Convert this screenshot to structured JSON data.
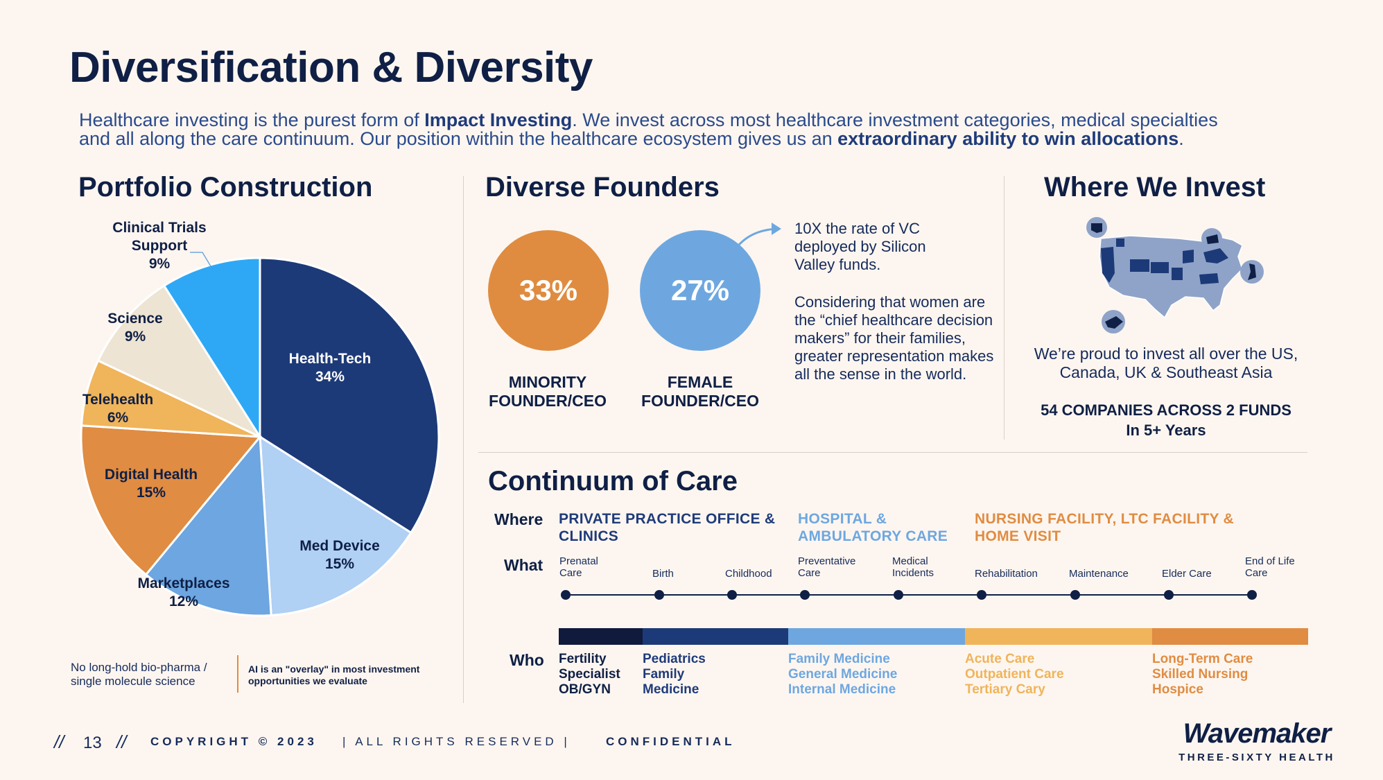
{
  "title": "Diversification & Diversity",
  "intro": {
    "line1_pre": "Healthcare investing is the purest form of ",
    "line1_bold": "Impact Investing",
    "line1_post": ". We invest across most healthcare investment categories, medical specialties",
    "line2_pre": "and all along the care continuum. Our position within the healthcare ecosystem gives us an ",
    "line2_bold": "extraordinary ability to win allocations",
    "line2_post": "."
  },
  "portfolio": {
    "heading": "Portfolio Construction",
    "slices": [
      {
        "name": "Health-Tech",
        "pct": "34%",
        "value": 34,
        "color": "#1d3a78"
      },
      {
        "name": "Med Device",
        "pct": "15%",
        "value": 15,
        "color": "#b0d0f4"
      },
      {
        "name": "Marketplaces",
        "pct": "12%",
        "value": 12,
        "color": "#6da6e0"
      },
      {
        "name": "Digital Health",
        "pct": "15%",
        "value": 15,
        "color": "#e08c42"
      },
      {
        "name": "Telehealth",
        "pct": "6%",
        "value": 6,
        "color": "#f0b45a"
      },
      {
        "name": "Science",
        "pct": "9%",
        "value": 9,
        "color": "#ede4d3"
      },
      {
        "name": "Clinical Trials Support",
        "pct": "9%",
        "value": 9,
        "color": "#2ea8f5"
      }
    ],
    "note_left": "No long-hold bio-pharma / single molecule science",
    "note_right": "AI is an \"overlay\" in most investment opportunities we evaluate"
  },
  "founders": {
    "heading": "Diverse Founders",
    "minority_pct": "33%",
    "minority_label": "MINORITY FOUNDER/CEO",
    "minority_color": "#df8c40",
    "female_pct": "27%",
    "female_label": "FEMALE FOUNDER/CEO",
    "female_color": "#6ea7e0",
    "note1": "10X the rate of VC deployed by Silicon Valley funds.",
    "note2": "Considering that women are the “chief healthcare decision makers” for their families, greater representation makes all the sense in the world."
  },
  "invest": {
    "heading": "Where We Invest",
    "text": "We’re proud to invest all over the US, Canada, UK & Southeast Asia",
    "stat1": "54 COMPANIES ACROSS 2 FUNDS",
    "stat2": "In 5+ Years"
  },
  "continuum": {
    "heading": "Continuum of Care",
    "where_label": "Where",
    "what_label": "What",
    "who_label": "Who",
    "where": [
      {
        "text": "PRIVATE PRACTICE OFFICE & CLINICS",
        "color": "#1f3b7a"
      },
      {
        "text": "HOSPITAL & AMBULATORY CARE",
        "color": "#6ea7e0"
      },
      {
        "text": "NURSING FACILITY, LTC FACILITY & HOME VISIT",
        "color": "#e08c42"
      }
    ],
    "what": [
      "Prenatal Care",
      "Birth",
      "Childhood",
      "Preventative Care",
      "Medical Incidents",
      "Rehabilitation",
      "Maintenance",
      "Elder Care",
      "End of Life Care"
    ],
    "bar_colors": [
      "#0f1a3d",
      "#1d3a78",
      "#6ea7e0",
      "#f0b45a",
      "#e08c42"
    ],
    "who": [
      {
        "text": "Fertility\nSpecialist\nOB/GYN",
        "color": "#0f1f45"
      },
      {
        "text": "Pediatrics\nFamily\nMedicine",
        "color": "#1f3b7a"
      },
      {
        "text": "Family Medicine\nGeneral Medicine\nInternal Medicine",
        "color": "#6ea7e0"
      },
      {
        "text": "Acute Care\nOutpatient Care\nTertiary Cary",
        "color": "#f0b45a"
      },
      {
        "text": "Long-Term Care\nSkilled Nursing\nHospice",
        "color": "#e08c42"
      }
    ]
  },
  "footer": {
    "slashes_left": "//",
    "page": "13",
    "slashes_right": "//",
    "copyright": "COPYRIGHT © 2023",
    "rights": "| ALL RIGHTS RESERVED |",
    "confidential": "CONFIDENTIAL",
    "logo_word": "Wavemaker",
    "logo_sub": "THREE-SIXTY HEALTH"
  }
}
